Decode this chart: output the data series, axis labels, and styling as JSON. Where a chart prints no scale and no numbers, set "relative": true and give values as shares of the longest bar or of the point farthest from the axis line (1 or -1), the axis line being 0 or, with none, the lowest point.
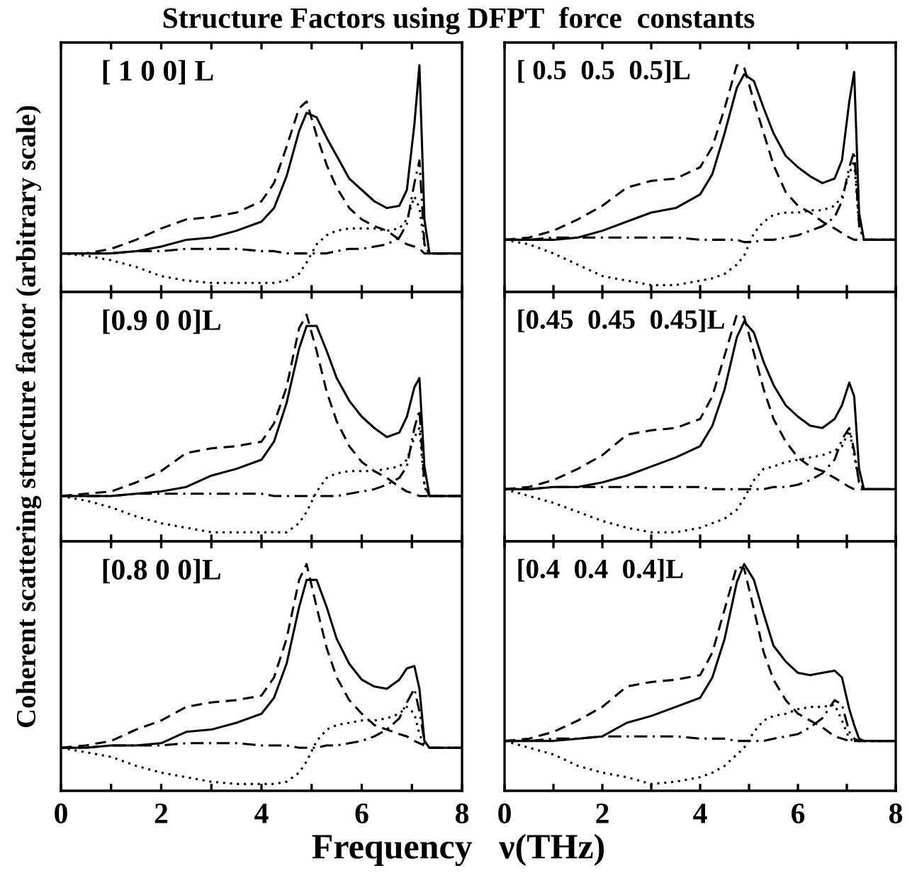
{
  "chart_data": [
    {
      "type": "line",
      "relative": true,
      "title": "Structure Factors using DFPT  force  constants",
      "annotations": [
        "[ 1 0 0] L"
      ],
      "tick_labels": false,
      "xlim": [
        0,
        8
      ],
      "xticks": [
        0,
        {
          "value": 1,
          "label": null
        },
        2,
        {
          "value": 3,
          "label": null
        },
        4,
        {
          "value": 5,
          "label": null
        },
        6,
        {
          "value": 7,
          "label": null
        },
        8
      ],
      "x": [
        0,
        0.5,
        1,
        1.5,
        2,
        2.5,
        3,
        3.5,
        4,
        4.25,
        4.5,
        4.75,
        4.9,
        5.1,
        5.3,
        5.5,
        5.75,
        6,
        6.25,
        6.5,
        6.75,
        6.9,
        7.05,
        7.15,
        7.25,
        7.35,
        8
      ],
      "series": [
        {
          "color": "#000000",
          "line_style": "solid",
          "values": [
            0.17,
            0.17,
            0.17,
            0.18,
            0.2,
            0.23,
            0.24,
            0.27,
            0.31,
            0.37,
            0.51,
            0.71,
            0.79,
            0.77,
            0.68,
            0.6,
            0.5,
            0.45,
            0.4,
            0.37,
            0.38,
            0.45,
            0.74,
            1,
            0.32,
            0.17,
            0.17
          ]
        },
        {
          "color": "#000000",
          "line_style": "dashed",
          "values": [
            0.17,
            0.17,
            0.19,
            0.23,
            0.28,
            0.32,
            0.33,
            0.35,
            0.4,
            0.48,
            0.64,
            0.81,
            0.84,
            0.69,
            0.56,
            0.46,
            0.37,
            0.32,
            0.29,
            0.27,
            0.23,
            0.21,
            0.2,
            0.19,
            0.17,
            0.17,
            0.17
          ]
        },
        {
          "color": "#000000",
          "line_style": "dotted",
          "values": [
            0.17,
            0.16,
            0.14,
            0.11,
            0.07,
            0.05,
            0.04,
            0.04,
            0.04,
            0.04,
            0.05,
            0.08,
            0.13,
            0.21,
            0.25,
            0.27,
            0.28,
            0.28,
            0.28,
            0.27,
            0.28,
            0.32,
            0.42,
            0.37,
            0.21,
            0.17,
            0.17
          ]
        },
        {
          "color": "#000000",
          "line_style": "dashdot",
          "values": [
            0.17,
            0.17,
            0.17,
            0.18,
            0.18,
            0.19,
            0.19,
            0.19,
            0.18,
            0.18,
            0.17,
            0.17,
            0.17,
            0.17,
            0.17,
            0.18,
            0.19,
            0.19,
            0.2,
            0.21,
            0.24,
            0.3,
            0.48,
            0.58,
            0.21,
            0.17,
            0.17
          ]
        }
      ]
    },
    {
      "type": "line",
      "relative": true,
      "annotations": [
        "[ 0.5  0.5  0.5]L"
      ],
      "tick_labels": false,
      "xlim": [
        0,
        8
      ],
      "xticks": [
        0,
        {
          "value": 1,
          "label": null
        },
        2,
        {
          "value": 3,
          "label": null
        },
        4,
        {
          "value": 5,
          "label": null
        },
        6,
        {
          "value": 7,
          "label": null
        },
        8
      ],
      "x": [
        0,
        0.5,
        1,
        1.5,
        2,
        2.5,
        3,
        3.5,
        4,
        4.25,
        4.5,
        4.75,
        4.9,
        5.1,
        5.3,
        5.5,
        5.75,
        6,
        6.25,
        6.5,
        6.75,
        6.9,
        7.05,
        7.15,
        7.25,
        7.35,
        8
      ],
      "series": [
        {
          "color": "#000000",
          "line_style": "solid",
          "values": [
            0.23,
            0.23,
            0.23,
            0.24,
            0.27,
            0.31,
            0.35,
            0.37,
            0.43,
            0.52,
            0.7,
            0.9,
            0.96,
            0.93,
            0.81,
            0.7,
            0.6,
            0.55,
            0.51,
            0.48,
            0.5,
            0.58,
            0.84,
            0.97,
            0.35,
            0.23,
            0.23
          ]
        },
        {
          "color": "#000000",
          "line_style": "dashed",
          "values": [
            0.23,
            0.24,
            0.27,
            0.32,
            0.38,
            0.46,
            0.49,
            0.5,
            0.55,
            0.64,
            0.81,
            1,
            0.99,
            0.84,
            0.7,
            0.56,
            0.44,
            0.38,
            0.35,
            0.31,
            0.28,
            0.26,
            0.24,
            0.23,
            0.23,
            0.23,
            0.23
          ]
        },
        {
          "color": "#000000",
          "line_style": "dotted",
          "values": [
            0.23,
            0.21,
            0.17,
            0.12,
            0.07,
            0.05,
            0.03,
            0.03,
            0.05,
            0.06,
            0.08,
            0.12,
            0.16,
            0.26,
            0.31,
            0.34,
            0.35,
            0.35,
            0.36,
            0.36,
            0.38,
            0.42,
            0.52,
            0.58,
            0.29,
            0.23,
            0.23
          ]
        },
        {
          "color": "#000000",
          "line_style": "dashdot",
          "values": [
            0.23,
            0.23,
            0.24,
            0.24,
            0.24,
            0.24,
            0.24,
            0.24,
            0.23,
            0.23,
            0.23,
            0.23,
            0.22,
            0.22,
            0.23,
            0.23,
            0.24,
            0.25,
            0.27,
            0.29,
            0.33,
            0.4,
            0.55,
            0.62,
            0.3,
            0.23,
            0.23
          ]
        }
      ]
    },
    {
      "type": "line",
      "relative": true,
      "ylabel": "Coherent scattering structure factor (arbitrary scale)",
      "annotations": [
        "[0.9 0 0]L"
      ],
      "tick_labels": false,
      "xlim": [
        0,
        8
      ],
      "xticks": [
        0,
        {
          "value": 1,
          "label": null
        },
        2,
        {
          "value": 3,
          "label": null
        },
        4,
        {
          "value": 5,
          "label": null
        },
        6,
        {
          "value": 7,
          "label": null
        },
        8
      ],
      "x": [
        0,
        0.5,
        1,
        1.5,
        2,
        2.5,
        3,
        3.5,
        4,
        4.25,
        4.5,
        4.75,
        4.9,
        5.1,
        5.3,
        5.5,
        5.75,
        6,
        6.25,
        6.5,
        6.75,
        6.9,
        7.05,
        7.15,
        7.25,
        7.35,
        8
      ],
      "series": [
        {
          "color": "#000000",
          "line_style": "solid",
          "values": [
            0.2,
            0.2,
            0.2,
            0.21,
            0.22,
            0.24,
            0.29,
            0.32,
            0.36,
            0.44,
            0.61,
            0.85,
            0.95,
            0.95,
            0.84,
            0.72,
            0.62,
            0.55,
            0.5,
            0.46,
            0.48,
            0.55,
            0.68,
            0.72,
            0.33,
            0.2,
            0.2
          ]
        },
        {
          "color": "#000000",
          "line_style": "dashed",
          "values": [
            0.2,
            0.21,
            0.22,
            0.26,
            0.31,
            0.39,
            0.41,
            0.42,
            0.44,
            0.52,
            0.68,
            0.94,
            1,
            0.84,
            0.66,
            0.53,
            0.42,
            0.35,
            0.31,
            0.28,
            0.24,
            0.22,
            0.21,
            0.2,
            0.2,
            0.2,
            0.2
          ]
        },
        {
          "color": "#000000",
          "line_style": "dotted",
          "values": [
            0.2,
            0.18,
            0.15,
            0.11,
            0.08,
            0.06,
            0.04,
            0.04,
            0.04,
            0.04,
            0.04,
            0.08,
            0.13,
            0.22,
            0.28,
            0.3,
            0.31,
            0.31,
            0.31,
            0.32,
            0.33,
            0.36,
            0.46,
            0.5,
            0.24,
            0.2,
            0.2
          ]
        },
        {
          "color": "#000000",
          "line_style": "dashdot",
          "values": [
            0.2,
            0.2,
            0.2,
            0.21,
            0.21,
            0.21,
            0.21,
            0.21,
            0.21,
            0.2,
            0.2,
            0.2,
            0.2,
            0.2,
            0.2,
            0.2,
            0.21,
            0.22,
            0.23,
            0.25,
            0.28,
            0.33,
            0.5,
            0.58,
            0.25,
            0.2,
            0.2
          ]
        }
      ]
    },
    {
      "type": "line",
      "relative": true,
      "annotations": [
        "[0.45  0.45  0.45]L"
      ],
      "tick_labels": false,
      "xlim": [
        0,
        8
      ],
      "xticks": [
        0,
        {
          "value": 1,
          "label": null
        },
        2,
        {
          "value": 3,
          "label": null
        },
        4,
        {
          "value": 5,
          "label": null
        },
        6,
        {
          "value": 7,
          "label": null
        },
        8
      ],
      "x": [
        0,
        0.5,
        1,
        1.5,
        2,
        2.5,
        3,
        3.5,
        4,
        4.25,
        4.5,
        4.75,
        4.9,
        5.1,
        5.3,
        5.5,
        5.75,
        6,
        6.25,
        6.5,
        6.75,
        6.9,
        7.05,
        7.15,
        7.25,
        7.35,
        8
      ],
      "series": [
        {
          "color": "#000000",
          "line_style": "solid",
          "values": [
            0.23,
            0.23,
            0.24,
            0.24,
            0.26,
            0.29,
            0.33,
            0.37,
            0.42,
            0.51,
            0.67,
            0.9,
            0.97,
            0.92,
            0.79,
            0.69,
            0.6,
            0.55,
            0.51,
            0.5,
            0.54,
            0.6,
            0.7,
            0.64,
            0.32,
            0.23,
            0.23
          ]
        },
        {
          "color": "#000000",
          "line_style": "dashed",
          "values": [
            0.23,
            0.24,
            0.27,
            0.32,
            0.38,
            0.47,
            0.49,
            0.5,
            0.54,
            0.64,
            0.82,
            1,
            0.99,
            0.83,
            0.67,
            0.54,
            0.44,
            0.37,
            0.33,
            0.31,
            0.28,
            0.26,
            0.24,
            0.23,
            0.23,
            0.23,
            0.23
          ]
        },
        {
          "color": "#000000",
          "line_style": "dotted",
          "values": [
            0.23,
            0.2,
            0.17,
            0.13,
            0.09,
            0.06,
            0.04,
            0.04,
            0.06,
            0.08,
            0.1,
            0.14,
            0.19,
            0.27,
            0.32,
            0.33,
            0.35,
            0.36,
            0.37,
            0.38,
            0.4,
            0.42,
            0.49,
            0.38,
            0.26,
            0.23,
            0.23
          ]
        },
        {
          "color": "#000000",
          "line_style": "dashdot",
          "values": [
            0.23,
            0.23,
            0.24,
            0.24,
            0.24,
            0.24,
            0.24,
            0.24,
            0.24,
            0.23,
            0.23,
            0.23,
            0.23,
            0.23,
            0.23,
            0.24,
            0.24,
            0.25,
            0.27,
            0.3,
            0.36,
            0.45,
            0.5,
            0.4,
            0.26,
            0.23,
            0.23
          ]
        }
      ]
    },
    {
      "type": "line",
      "relative": true,
      "xlabel": "Frequency   ν(THz)",
      "annotations": [
        "[0.8 0 0]L"
      ],
      "tick_labels": "x",
      "xlim": [
        0,
        8
      ],
      "xticks": [
        0,
        {
          "value": 1,
          "label": null
        },
        2,
        {
          "value": 3,
          "label": null
        },
        4,
        {
          "value": 5,
          "label": null
        },
        6,
        {
          "value": 7,
          "label": null
        },
        8
      ],
      "x": [
        0,
        0.5,
        1,
        1.5,
        2,
        2.5,
        3,
        3.5,
        4,
        4.25,
        4.5,
        4.75,
        4.9,
        5.1,
        5.3,
        5.5,
        5.75,
        6,
        6.25,
        6.5,
        6.75,
        6.9,
        7.05,
        7.15,
        7.25,
        7.35,
        8
      ],
      "series": [
        {
          "color": "#000000",
          "line_style": "solid",
          "values": [
            0.19,
            0.19,
            0.2,
            0.2,
            0.21,
            0.26,
            0.27,
            0.3,
            0.34,
            0.41,
            0.56,
            0.81,
            0.93,
            0.93,
            0.81,
            0.67,
            0.56,
            0.49,
            0.46,
            0.45,
            0.49,
            0.54,
            0.55,
            0.45,
            0.22,
            0.19,
            0.19
          ]
        },
        {
          "color": "#000000",
          "line_style": "dashed",
          "values": [
            0.19,
            0.2,
            0.22,
            0.27,
            0.31,
            0.37,
            0.39,
            0.4,
            0.42,
            0.5,
            0.67,
            0.93,
            1,
            0.81,
            0.63,
            0.5,
            0.4,
            0.34,
            0.29,
            0.27,
            0.25,
            0.24,
            0.22,
            0.21,
            0.2,
            0.19,
            0.19
          ]
        },
        {
          "color": "#000000",
          "line_style": "dotted",
          "values": [
            0.19,
            0.17,
            0.15,
            0.11,
            0.08,
            0.06,
            0.04,
            0.03,
            0.03,
            0.03,
            0.04,
            0.08,
            0.13,
            0.22,
            0.27,
            0.29,
            0.3,
            0.31,
            0.31,
            0.32,
            0.34,
            0.37,
            0.34,
            0.25,
            0.2,
            0.19,
            0.19
          ]
        },
        {
          "color": "#000000",
          "line_style": "dashdot",
          "values": [
            0.19,
            0.19,
            0.2,
            0.2,
            0.2,
            0.21,
            0.21,
            0.21,
            0.2,
            0.2,
            0.2,
            0.19,
            0.19,
            0.19,
            0.2,
            0.2,
            0.21,
            0.22,
            0.24,
            0.27,
            0.32,
            0.39,
            0.45,
            0.35,
            0.22,
            0.19,
            0.19
          ]
        }
      ]
    },
    {
      "type": "line",
      "relative": true,
      "annotations": [
        "[0.4  0.4  0.4]L"
      ],
      "tick_labels": "x",
      "xlim": [
        0,
        8
      ],
      "xticks": [
        0,
        {
          "value": 1,
          "label": null
        },
        2,
        {
          "value": 3,
          "label": null
        },
        4,
        {
          "value": 5,
          "label": null
        },
        6,
        {
          "value": 7,
          "label": null
        },
        8
      ],
      "x": [
        0,
        0.5,
        1,
        1.5,
        2,
        2.5,
        3,
        3.5,
        4,
        4.25,
        4.5,
        4.75,
        4.9,
        5.1,
        5.3,
        5.5,
        5.75,
        6,
        6.25,
        6.5,
        6.75,
        6.9,
        7.05,
        7.15,
        7.25,
        7.35,
        8
      ],
      "series": [
        {
          "color": "#000000",
          "line_style": "solid",
          "values": [
            0.22,
            0.22,
            0.22,
            0.23,
            0.24,
            0.3,
            0.33,
            0.37,
            0.41,
            0.5,
            0.67,
            0.92,
            1,
            0.93,
            0.78,
            0.64,
            0.57,
            0.52,
            0.51,
            0.52,
            0.53,
            0.5,
            0.36,
            0.29,
            0.23,
            0.22,
            0.22
          ]
        },
        {
          "color": "#000000",
          "line_style": "dashed",
          "values": [
            0.22,
            0.23,
            0.26,
            0.31,
            0.37,
            0.46,
            0.48,
            0.49,
            0.51,
            0.61,
            0.8,
            0.99,
            0.98,
            0.8,
            0.61,
            0.49,
            0.4,
            0.34,
            0.31,
            0.28,
            0.24,
            0.23,
            0.22,
            0.22,
            0.22,
            0.22,
            0.22
          ]
        },
        {
          "color": "#000000",
          "line_style": "dotted",
          "values": [
            0.22,
            0.19,
            0.16,
            0.11,
            0.08,
            0.06,
            0.03,
            0.04,
            0.06,
            0.08,
            0.11,
            0.16,
            0.19,
            0.26,
            0.31,
            0.33,
            0.34,
            0.36,
            0.37,
            0.37,
            0.38,
            0.31,
            0.23,
            0.22,
            0.22,
            0.22,
            0.22
          ]
        },
        {
          "color": "#000000",
          "line_style": "dashdot",
          "values": [
            0.22,
            0.22,
            0.23,
            0.23,
            0.24,
            0.24,
            0.24,
            0.24,
            0.23,
            0.23,
            0.23,
            0.22,
            0.22,
            0.22,
            0.22,
            0.23,
            0.24,
            0.25,
            0.28,
            0.32,
            0.4,
            0.38,
            0.26,
            0.23,
            0.22,
            0.22,
            0.22
          ]
        }
      ]
    }
  ]
}
